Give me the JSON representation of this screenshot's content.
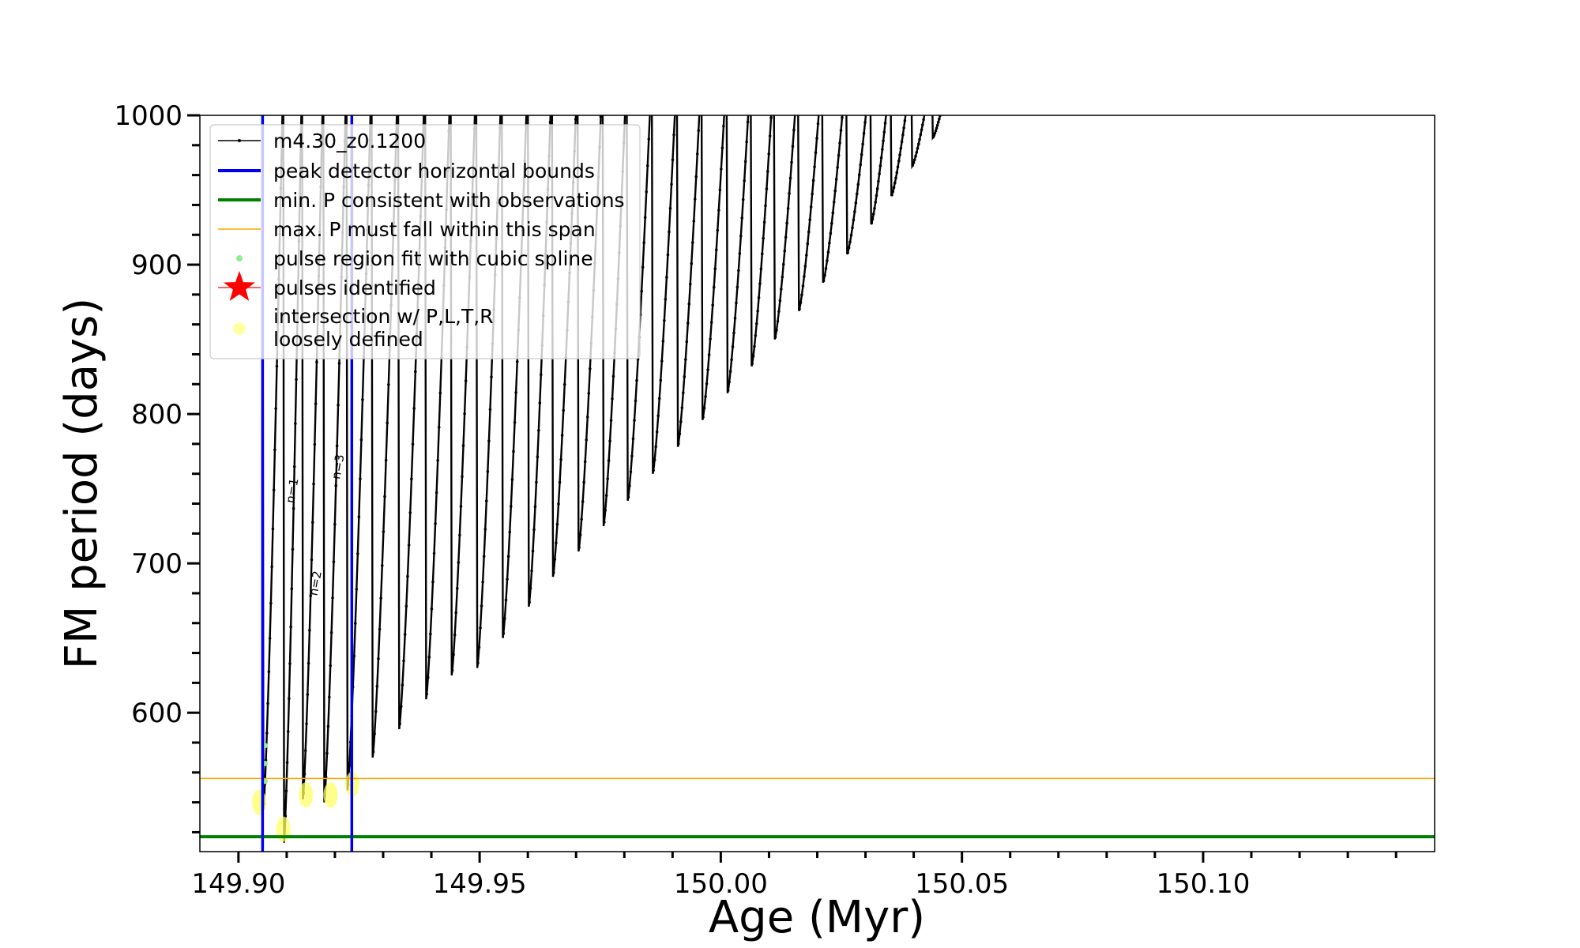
{
  "chart_data": {
    "type": "line",
    "title": "",
    "xlabel": "Age (Myr)",
    "ylabel": "FM period (days)",
    "xlim": [
      149.892,
      150.148
    ],
    "ylim": [
      507,
      1000
    ],
    "x_ticks": [
      149.9,
      149.95,
      150.0,
      150.05,
      150.1
    ],
    "x_tick_labels": [
      "149.90",
      "149.95",
      "150.00",
      "150.05",
      "150.10"
    ],
    "y_ticks": [
      600,
      700,
      800,
      900,
      1000
    ],
    "y_tick_labels": [
      "600",
      "700",
      "800",
      "900",
      "1000"
    ],
    "grid": false,
    "legend_position": "top-left",
    "series": [
      {
        "name": "m4.30_z0.1200",
        "color": "#000000",
        "style": "line-with-small-markers",
        "pulses": [
          {
            "x_start": 149.905,
            "x_peak": 149.9093,
            "y_min": 535,
            "y_max": 1000
          },
          {
            "x_start": 149.9093,
            "x_peak": 149.9132,
            "y_min": 513,
            "y_max": 1000
          },
          {
            "x_start": 149.9132,
            "x_peak": 149.9176,
            "y_min": 542,
            "y_max": 1000
          },
          {
            "x_start": 149.9176,
            "x_peak": 149.9224,
            "y_min": 540,
            "y_max": 1000
          },
          {
            "x_start": 149.9224,
            "x_peak": 149.9276,
            "y_min": 548,
            "y_max": 1000
          },
          {
            "x_start": 149.9276,
            "x_peak": 149.9331,
            "y_min": 570,
            "y_max": 1000
          },
          {
            "x_start": 149.9331,
            "x_peak": 149.9387,
            "y_min": 589,
            "y_max": 1000
          },
          {
            "x_start": 149.9387,
            "x_peak": 149.944,
            "y_min": 609,
            "y_max": 1000
          },
          {
            "x_start": 149.944,
            "x_peak": 149.9493,
            "y_min": 625,
            "y_max": 1000
          },
          {
            "x_start": 149.9493,
            "x_peak": 149.9546,
            "y_min": 630,
            "y_max": 1000
          },
          {
            "x_start": 149.9546,
            "x_peak": 149.96,
            "y_min": 650,
            "y_max": 1000
          },
          {
            "x_start": 149.96,
            "x_peak": 149.965,
            "y_min": 671,
            "y_max": 1000
          },
          {
            "x_start": 149.965,
            "x_peak": 149.9703,
            "y_min": 691,
            "y_max": 1000
          },
          {
            "x_start": 149.9703,
            "x_peak": 149.9755,
            "y_min": 708,
            "y_max": 1000
          },
          {
            "x_start": 149.9755,
            "x_peak": 149.9805,
            "y_min": 725,
            "y_max": 1000
          },
          {
            "x_start": 149.9805,
            "x_peak": 149.9857,
            "y_min": 742,
            "y_max": 1000
          },
          {
            "x_start": 149.9857,
            "x_peak": 149.9909,
            "y_min": 760,
            "y_max": 1000
          },
          {
            "x_start": 149.9909,
            "x_peak": 149.996,
            "y_min": 778,
            "y_max": 1000
          },
          {
            "x_start": 149.996,
            "x_peak": 150.0012,
            "y_min": 796,
            "y_max": 1000
          },
          {
            "x_start": 150.0012,
            "x_peak": 150.0062,
            "y_min": 814,
            "y_max": 1000
          },
          {
            "x_start": 150.0062,
            "x_peak": 150.011,
            "y_min": 832,
            "y_max": 1000
          },
          {
            "x_start": 150.011,
            "x_peak": 150.016,
            "y_min": 850,
            "y_max": 1000
          },
          {
            "x_start": 150.016,
            "x_peak": 150.021,
            "y_min": 869,
            "y_max": 1000
          },
          {
            "x_start": 150.021,
            "x_peak": 150.026,
            "y_min": 888,
            "y_max": 1000
          },
          {
            "x_start": 150.026,
            "x_peak": 150.031,
            "y_min": 907,
            "y_max": 1000
          },
          {
            "x_start": 150.031,
            "x_peak": 150.0352,
            "y_min": 927,
            "y_max": 1000
          },
          {
            "x_start": 150.0352,
            "x_peak": 150.0395,
            "y_min": 946,
            "y_max": 1000
          },
          {
            "x_start": 150.0395,
            "x_peak": 150.0438,
            "y_min": 966,
            "y_max": 1000
          },
          {
            "x_start": 150.0438,
            "x_peak": 150.0475,
            "y_min": 985,
            "y_max": 1000
          }
        ]
      },
      {
        "name": "peak detector horizontal bounds",
        "type": "vlines",
        "color": "#0000ee",
        "x": [
          149.905,
          149.9235
        ]
      },
      {
        "name": "min. P consistent with observations",
        "type": "hline",
        "color": "#008000",
        "y": 517
      },
      {
        "name": "max. P must fall within this span",
        "type": "hline",
        "color": "#ffa500",
        "y": 556
      },
      {
        "name": "pulse region fit with cubic spline",
        "type": "scatter",
        "color": "#90ee90",
        "x": [
          149.9055,
          149.9055,
          149.9055
        ],
        "y": [
          578,
          566,
          554
        ]
      },
      {
        "name": "pulses identified",
        "type": "scatter",
        "color": "#ff0000",
        "x": [],
        "y": []
      },
      {
        "name": "intersection w/ P,L,T,R loosely defined",
        "type": "scatter",
        "color": "#ffff66",
        "x": [
          149.9043,
          149.9093,
          149.914,
          149.9191,
          149.9236
        ],
        "y": [
          540,
          522,
          545,
          545,
          552
        ]
      }
    ],
    "annotations": [
      {
        "text": "n=1",
        "x": 149.9115,
        "y": 740
      },
      {
        "text": "n=2",
        "x": 149.9163,
        "y": 678
      },
      {
        "text": "n=3",
        "x": 149.921,
        "y": 756
      }
    ]
  }
}
